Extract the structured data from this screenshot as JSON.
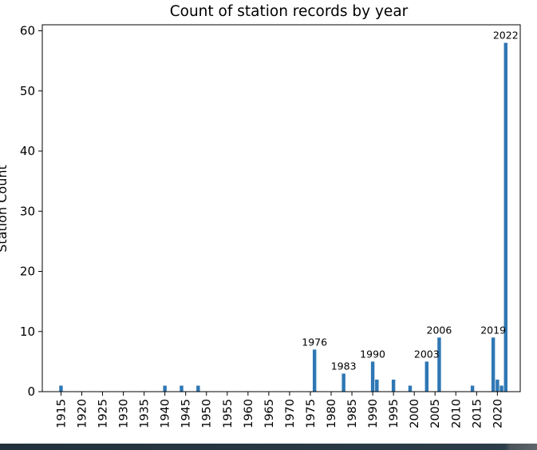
{
  "colors": {
    "bar": "#2f77b4",
    "axis": "#000000",
    "background": "#ffffff"
  },
  "chart_data": {
    "type": "bar",
    "title": "Count of station records by year",
    "ylabel": "Station Count",
    "xlabel": "",
    "xlim": [
      1910.5,
      2025.5
    ],
    "ylim": [
      0,
      61
    ],
    "grid": false,
    "legend": "none",
    "xticks": [
      1915,
      1920,
      1925,
      1930,
      1935,
      1940,
      1945,
      1950,
      1955,
      1960,
      1965,
      1970,
      1975,
      1980,
      1985,
      1990,
      1995,
      2000,
      2005,
      2010,
      2015,
      2020
    ],
    "yticks": [
      0,
      10,
      20,
      30,
      40,
      50,
      60
    ],
    "bar_labels": [
      "1976",
      "1983",
      "1990",
      "2003",
      "2006",
      "2019",
      "2022"
    ],
    "data": [
      {
        "year": 1915,
        "count": 1
      },
      {
        "year": 1940,
        "count": 1
      },
      {
        "year": 1944,
        "count": 1
      },
      {
        "year": 1948,
        "count": 1
      },
      {
        "year": 1976,
        "count": 7
      },
      {
        "year": 1983,
        "count": 3
      },
      {
        "year": 1990,
        "count": 5
      },
      {
        "year": 1991,
        "count": 2
      },
      {
        "year": 1995,
        "count": 2
      },
      {
        "year": 1999,
        "count": 1
      },
      {
        "year": 2003,
        "count": 5
      },
      {
        "year": 2006,
        "count": 9
      },
      {
        "year": 2014,
        "count": 1
      },
      {
        "year": 2019,
        "count": 9
      },
      {
        "year": 2020,
        "count": 2
      },
      {
        "year": 2021,
        "count": 1
      },
      {
        "year": 2022,
        "count": 58
      }
    ]
  }
}
